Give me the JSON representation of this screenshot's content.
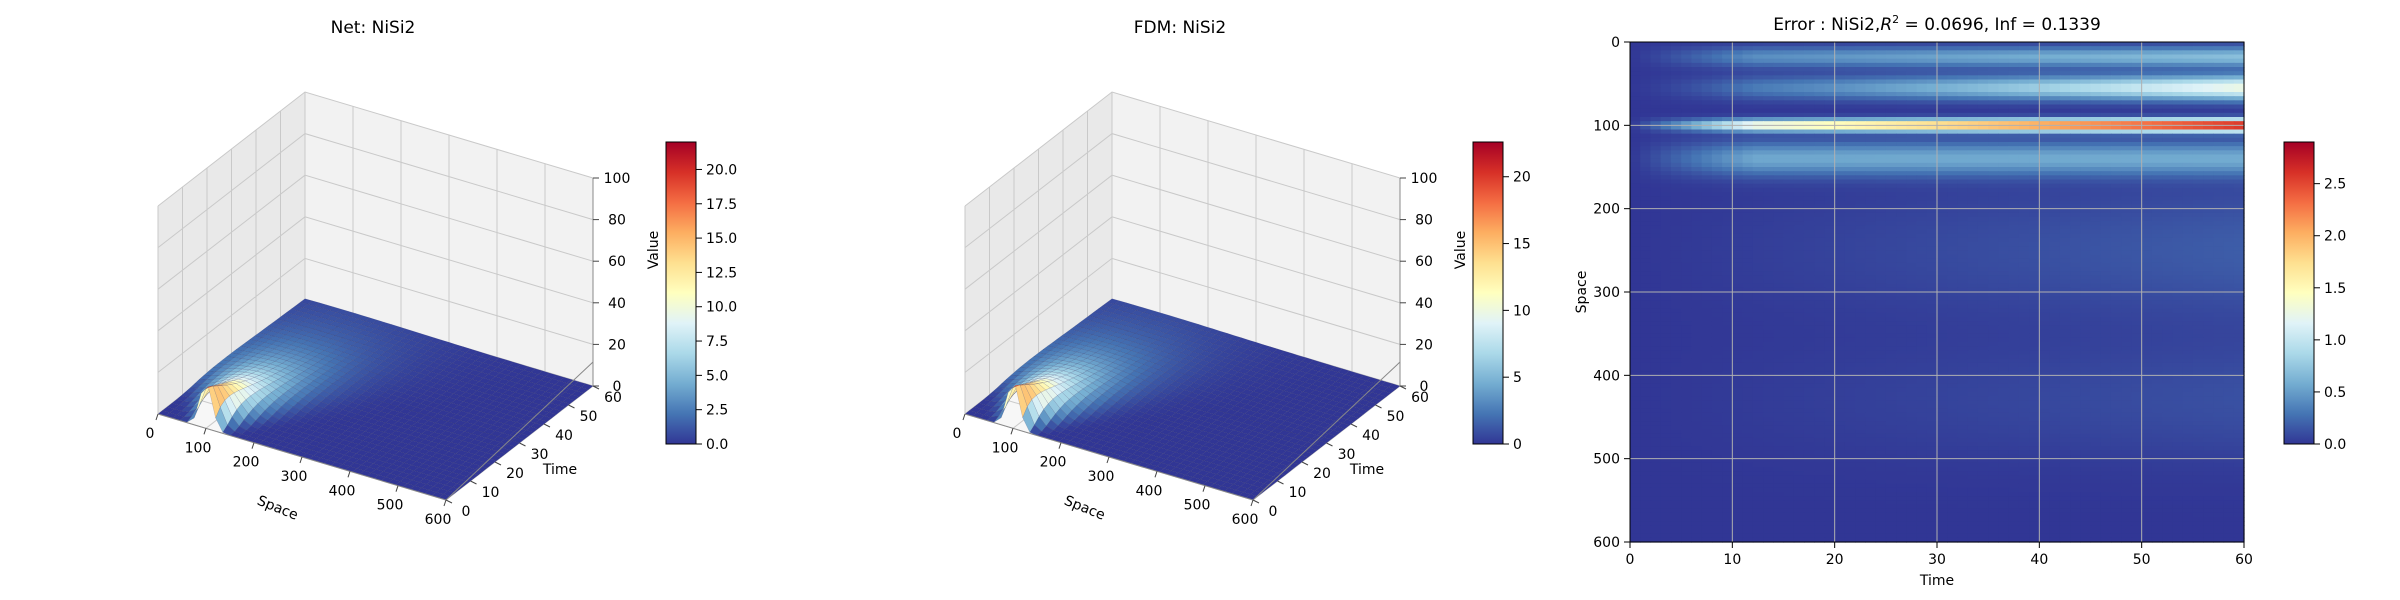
{
  "colors": {
    "low": "#313695",
    "mid": "#ffffbf",
    "high": "#a50026",
    "pane": "#f2f2f2",
    "grid": "#b0b0b0"
  },
  "chart_data": [
    {
      "type": "surface3d",
      "title": "Net: NiSi2",
      "xlabel": "Space",
      "ylabel": "Time",
      "zlabel": "Value",
      "xlim": [
        0,
        600
      ],
      "ylim": [
        0,
        60
      ],
      "zlim": [
        0,
        100
      ],
      "xticks": [
        "0",
        "100",
        "200",
        "300",
        "400",
        "500",
        "600"
      ],
      "yticks": [
        "0",
        "10",
        "20",
        "30",
        "40",
        "50",
        "60"
      ],
      "zticks": [
        "0",
        "20",
        "40",
        "60",
        "80",
        "100"
      ],
      "peak_value": 22.0,
      "peak_space": 100,
      "colorbar": {
        "range": [
          0,
          22.0
        ],
        "ticks": [
          "0.0",
          "2.5",
          "5.0",
          "7.5",
          "10.0",
          "12.5",
          "15.0",
          "17.5",
          "20.0"
        ],
        "tick_values": [
          0,
          2.5,
          5,
          7.5,
          10,
          12.5,
          15,
          17.5,
          20
        ]
      }
    },
    {
      "type": "surface3d",
      "title": "FDM: NiSi2",
      "xlabel": "Space",
      "ylabel": "Time",
      "zlabel": "Value",
      "xlim": [
        0,
        600
      ],
      "ylim": [
        0,
        60
      ],
      "zlim": [
        0,
        100
      ],
      "xticks": [
        "0",
        "100",
        "200",
        "300",
        "400",
        "500",
        "600"
      ],
      "yticks": [
        "0",
        "10",
        "20",
        "30",
        "40",
        "50",
        "60"
      ],
      "zticks": [
        "0",
        "20",
        "40",
        "60",
        "80",
        "100"
      ],
      "peak_value": 22.6,
      "peak_space": 100,
      "colorbar": {
        "range": [
          0,
          22.6
        ],
        "ticks": [
          "0",
          "5",
          "10",
          "15",
          "20"
        ],
        "tick_values": [
          0,
          5,
          10,
          15,
          20
        ]
      }
    },
    {
      "type": "heatmap",
      "title_prefix": "Error : NiSi2,",
      "title_r2": "R",
      "title_sup": "2",
      "title_suffix": " = 0.0696, Inf = 0.1339",
      "xlabel": "Time",
      "ylabel": "Space",
      "xlim": [
        0,
        60
      ],
      "ylim": [
        600,
        0
      ],
      "xticks": [
        "0",
        "10",
        "20",
        "30",
        "40",
        "50",
        "60"
      ],
      "yticks": [
        "0",
        "100",
        "200",
        "300",
        "400",
        "500",
        "600"
      ],
      "grid": true,
      "max_error": 2.9,
      "max_error_space": 100,
      "colorbar": {
        "range": [
          0,
          2.9
        ],
        "ticks": [
          "0.0",
          "0.5",
          "1.0",
          "1.5",
          "2.0",
          "2.5"
        ],
        "tick_values": [
          0,
          0.5,
          1,
          1.5,
          2,
          2.5
        ]
      }
    }
  ]
}
